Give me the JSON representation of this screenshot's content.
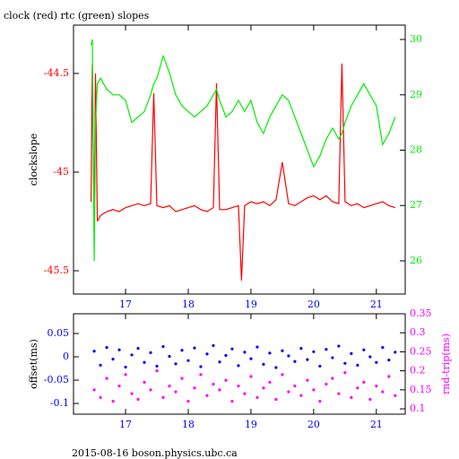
{
  "chart_data": [
    {
      "type": "line",
      "title": "clock (red) rtc (green) slopes",
      "ylabel": "clockslope",
      "x": [
        16.45,
        16.47,
        16.5,
        16.52,
        16.55,
        16.6,
        16.7,
        16.8,
        16.9,
        17.0,
        17.1,
        17.2,
        17.3,
        17.4,
        17.45,
        17.5,
        17.6,
        17.7,
        17.8,
        17.9,
        18.0,
        18.1,
        18.2,
        18.3,
        18.4,
        18.45,
        18.5,
        18.6,
        18.7,
        18.8,
        18.85,
        18.9,
        19.0,
        19.1,
        19.2,
        19.3,
        19.4,
        19.5,
        19.6,
        19.7,
        19.8,
        19.9,
        20.0,
        20.1,
        20.2,
        20.3,
        20.4,
        20.45,
        20.5,
        20.6,
        20.7,
        20.8,
        20.9,
        21.0,
        21.1,
        21.2,
        21.3
      ],
      "xlim": [
        16.17,
        21.46
      ],
      "xticks": [
        17,
        18,
        19,
        20,
        21
      ],
      "ylim": [
        -45.618,
        -44.255
      ],
      "yticks": [
        -45.5,
        -45,
        -44.5
      ],
      "y2lim": [
        25.4,
        30.26
      ],
      "y2ticks": [
        26,
        27,
        28,
        29,
        30
      ],
      "series": [
        {
          "name": "clock",
          "color": "#ff0000",
          "values": [
            -45.15,
            -44.45,
            -45.3,
            -44.5,
            -45.25,
            -45.22,
            -45.2,
            -45.19,
            -45.2,
            -45.18,
            -45.17,
            -45.16,
            -45.17,
            -45.16,
            -44.6,
            -45.17,
            -45.18,
            -45.17,
            -45.2,
            -45.19,
            -45.18,
            -45.17,
            -45.19,
            -45.2,
            -45.18,
            -44.55,
            -45.19,
            -45.19,
            -45.18,
            -45.17,
            -45.55,
            -45.17,
            -45.15,
            -45.16,
            -45.15,
            -45.17,
            -45.14,
            -44.95,
            -45.16,
            -45.17,
            -45.15,
            -45.13,
            -45.12,
            -45.14,
            -45.12,
            -45.15,
            -45.16,
            -44.45,
            -45.15,
            -45.17,
            -45.16,
            -45.18,
            -45.17,
            -45.16,
            -45.15,
            -45.17,
            -45.18
          ]
        },
        {
          "name": "rtc",
          "color": "#00ee00",
          "axis": "y2",
          "values": [
            29.9,
            30.0,
            26.0,
            28.5,
            29.2,
            29.3,
            29.1,
            29.0,
            29.0,
            28.9,
            28.5,
            28.6,
            28.7,
            29.0,
            29.2,
            29.3,
            29.7,
            29.4,
            29.0,
            28.8,
            28.7,
            28.6,
            28.7,
            28.8,
            29.0,
            29.1,
            28.9,
            28.6,
            28.7,
            28.9,
            28.8,
            28.7,
            28.9,
            28.5,
            28.3,
            28.6,
            28.8,
            29.0,
            28.9,
            28.6,
            28.3,
            28.0,
            27.7,
            27.9,
            28.2,
            28.4,
            28.2,
            28.3,
            28.5,
            28.8,
            29.0,
            29.2,
            29.0,
            28.8,
            28.1,
            28.3,
            28.6
          ]
        }
      ]
    },
    {
      "type": "scatter",
      "ylabel": "offset(ms)",
      "y2label": "rnd-trip(ms)",
      "x": [
        16.5,
        16.6,
        16.7,
        16.8,
        16.9,
        17.0,
        17.1,
        17.2,
        17.3,
        17.4,
        17.5,
        17.6,
        17.7,
        17.8,
        17.9,
        18.0,
        18.1,
        18.2,
        18.3,
        18.4,
        18.5,
        18.6,
        18.7,
        18.8,
        18.9,
        19.0,
        19.1,
        19.2,
        19.3,
        19.4,
        19.5,
        19.6,
        19.7,
        19.8,
        19.9,
        20.0,
        20.1,
        20.2,
        20.3,
        20.4,
        20.5,
        20.6,
        20.7,
        20.8,
        20.9,
        21.0,
        21.1,
        21.2,
        21.3
      ],
      "xlim": [
        16.17,
        21.46
      ],
      "xticks": [
        17,
        18,
        19,
        20,
        21
      ],
      "ylim": [
        -0.123,
        0.0923
      ],
      "yticks": [
        -0.1,
        -0.05,
        0,
        0.05
      ],
      "y2lim": [
        0.086,
        0.35
      ],
      "y2ticks": [
        0.1,
        0.15,
        0.2,
        0.25,
        0.3,
        0.35
      ],
      "series": [
        {
          "name": "offset",
          "color": "#0000ff",
          "values": [
            0.012,
            -0.018,
            0.02,
            -0.005,
            0.015,
            -0.022,
            0.004,
            0.018,
            -0.012,
            0.009,
            -0.02,
            0.022,
            0.001,
            -0.015,
            0.014,
            -0.008,
            0.019,
            -0.021,
            0.006,
            0.024,
            -0.011,
            0.003,
            0.017,
            -0.019,
            0.01,
            -0.004,
            0.021,
            -0.016,
            0.008,
            -0.023,
            0.013,
            0.002,
            -0.01,
            0.018,
            -0.006,
            0.011,
            -0.02,
            0.016,
            -0.002,
            0.023,
            -0.014,
            0.007,
            -0.018,
            0.015,
            0.0,
            -0.012,
            0.02,
            -0.007,
            0.01
          ]
        },
        {
          "name": "rnd-trip",
          "color": "#ff00ff",
          "axis": "y2",
          "values": [
            0.15,
            0.13,
            0.18,
            0.12,
            0.16,
            0.19,
            0.14,
            0.125,
            0.17,
            0.15,
            0.2,
            0.13,
            0.16,
            0.145,
            0.18,
            0.12,
            0.155,
            0.19,
            0.135,
            0.165,
            0.15,
            0.175,
            0.12,
            0.16,
            0.14,
            0.185,
            0.13,
            0.155,
            0.17,
            0.125,
            0.19,
            0.145,
            0.16,
            0.135,
            0.175,
            0.15,
            0.12,
            0.165,
            0.18,
            0.14,
            0.195,
            0.13,
            0.155,
            0.17,
            0.125,
            0.16,
            0.145,
            0.185,
            0.135
          ]
        }
      ]
    }
  ],
  "footer": "2015-08-16 boson.physics.ubc.ca"
}
